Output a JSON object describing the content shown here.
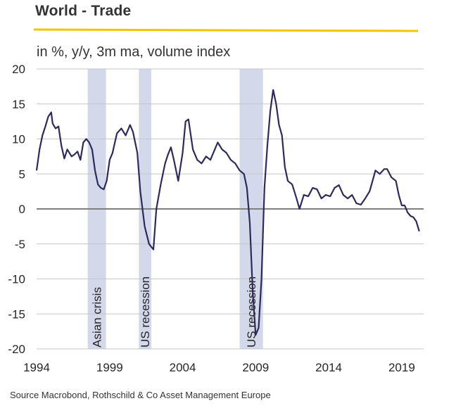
{
  "header": {
    "title": "World - Trade",
    "accent_color": "#F5C400"
  },
  "chart_data": {
    "type": "line",
    "subtitle": "in %, y/y, 3m ma, volume  index",
    "source": "Source Macrobond, Rothschild & Co Asset Management Europe",
    "x_ticks": [
      "1994",
      "1999",
      "2004",
      "2009",
      "2014",
      "2019"
    ],
    "xlim": [
      1994,
      2020.5
    ],
    "ylim": [
      -20,
      20
    ],
    "y_ticks": [
      "20",
      "15",
      "10",
      "5",
      "0",
      "-5",
      "-10",
      "-15",
      "-20"
    ],
    "grid": true,
    "line_color": "#2E2A5A",
    "band_color": "#D3D8EA",
    "recessions": [
      {
        "label": "Asian crisis",
        "start": 1997.5,
        "end": 1998.75
      },
      {
        "label": "US recession",
        "start": 2001.0,
        "end": 2001.85
      },
      {
        "label": "US recession",
        "start": 2007.9,
        "end": 2009.5
      }
    ],
    "series": [
      {
        "x": [
          1994.0,
          1994.2,
          1994.4,
          1994.6,
          1994.8,
          1995.0,
          1995.1,
          1995.3,
          1995.5,
          1995.7,
          1995.9,
          1996.1,
          1996.4,
          1996.6,
          1996.8,
          1997.0,
          1997.2,
          1997.4,
          1997.6,
          1997.8,
          1998.0,
          1998.2,
          1998.4,
          1998.6,
          1998.8,
          1999.0,
          1999.2,
          1999.5,
          1999.8,
          2000.1,
          2000.4,
          2000.6,
          2000.9,
          2001.1,
          2001.4,
          2001.7,
          2002.0,
          2002.2,
          2002.5,
          2002.8,
          2003.0,
          2003.2,
          2003.4,
          2003.7,
          2004.0,
          2004.2,
          2004.4,
          2004.7,
          2005.0,
          2005.3,
          2005.6,
          2005.9,
          2006.1,
          2006.4,
          2006.7,
          2007.0,
          2007.3,
          2007.6,
          2007.9,
          2008.2,
          2008.4,
          2008.6,
          2008.8,
          2009.0,
          2009.2,
          2009.4,
          2009.6,
          2009.8,
          2010.0,
          2010.2,
          2010.4,
          2010.6,
          2010.8,
          2011.0,
          2011.2,
          2011.5,
          2011.8,
          2012.0,
          2012.3,
          2012.6,
          2012.9,
          2013.2,
          2013.5,
          2013.8,
          2014.1,
          2014.4,
          2014.7,
          2015.0,
          2015.3,
          2015.6,
          2015.9,
          2016.2,
          2016.5,
          2016.8,
          2017.0,
          2017.2,
          2017.5,
          2017.8,
          2018.0,
          2018.3,
          2018.6,
          2018.8,
          2019.0,
          2019.2,
          2019.4,
          2019.6,
          2019.8,
          2020.0,
          2020.2
        ],
        "y": [
          5.5,
          8.5,
          10.5,
          11.8,
          13.2,
          13.8,
          12.2,
          11.5,
          11.8,
          9.0,
          7.2,
          8.5,
          7.5,
          7.8,
          8.2,
          7.0,
          9.5,
          10.0,
          9.5,
          8.5,
          5.5,
          3.5,
          3.0,
          2.8,
          4.0,
          7.0,
          8.0,
          10.8,
          11.5,
          10.5,
          12.0,
          11.0,
          8.0,
          2.5,
          -2.5,
          -5.0,
          -5.8,
          0.0,
          3.5,
          6.5,
          7.8,
          8.8,
          7.0,
          4.0,
          8.0,
          12.5,
          12.8,
          8.5,
          7.0,
          6.5,
          7.5,
          7.0,
          8.0,
          9.5,
          8.5,
          8.0,
          7.0,
          6.5,
          5.5,
          5.0,
          3.0,
          -2.0,
          -12.0,
          -18.0,
          -17.0,
          -10.0,
          3.0,
          9.0,
          14.0,
          17.0,
          15.0,
          12.0,
          10.5,
          6.0,
          4.0,
          3.5,
          1.5,
          0.0,
          2.0,
          1.8,
          3.0,
          2.8,
          1.5,
          2.0,
          1.8,
          3.0,
          3.4,
          2.0,
          1.5,
          2.0,
          0.8,
          0.6,
          1.5,
          2.5,
          4.0,
          5.5,
          5.0,
          5.7,
          5.7,
          4.5,
          4.0,
          2.0,
          0.5,
          0.5,
          -0.5,
          -1.0,
          -1.2,
          -1.8,
          -3.2
        ]
      }
    ]
  }
}
